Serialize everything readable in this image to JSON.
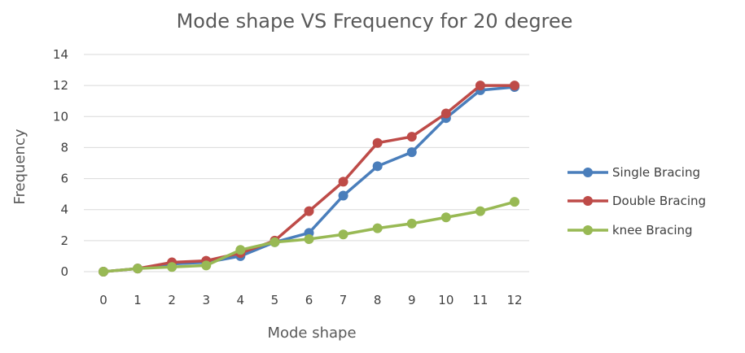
{
  "chart_data": {
    "type": "line",
    "title": "Mode shape VS Frequency for 20 degree",
    "xlabel": "Mode shape",
    "ylabel": "Frequency",
    "categories": [
      "0",
      "1",
      "2",
      "3",
      "4",
      "5",
      "6",
      "7",
      "8",
      "9",
      "10",
      "11",
      "12"
    ],
    "ylim": [
      0,
      14
    ],
    "yticks": [
      "0",
      "2",
      "4",
      "6",
      "8",
      "10",
      "12",
      "14"
    ],
    "grid": true,
    "legend_position": "right",
    "series": [
      {
        "name": "Single Bracing",
        "color": "#4a7ebb",
        "values": [
          0,
          0.2,
          0.5,
          0.6,
          1.0,
          1.9,
          2.5,
          4.9,
          6.8,
          7.7,
          9.9,
          11.7,
          11.9
        ]
      },
      {
        "name": "Double Bracing",
        "color": "#be4b48",
        "values": [
          0,
          0.2,
          0.6,
          0.7,
          1.2,
          2.0,
          3.9,
          5.8,
          8.3,
          8.7,
          10.2,
          12.0,
          12.0
        ]
      },
      {
        "name": "knee Bracing",
        "color": "#98b954",
        "values": [
          0,
          0.2,
          0.3,
          0.4,
          1.4,
          1.9,
          2.1,
          2.4,
          2.8,
          3.1,
          3.5,
          3.9,
          4.5
        ]
      }
    ]
  }
}
